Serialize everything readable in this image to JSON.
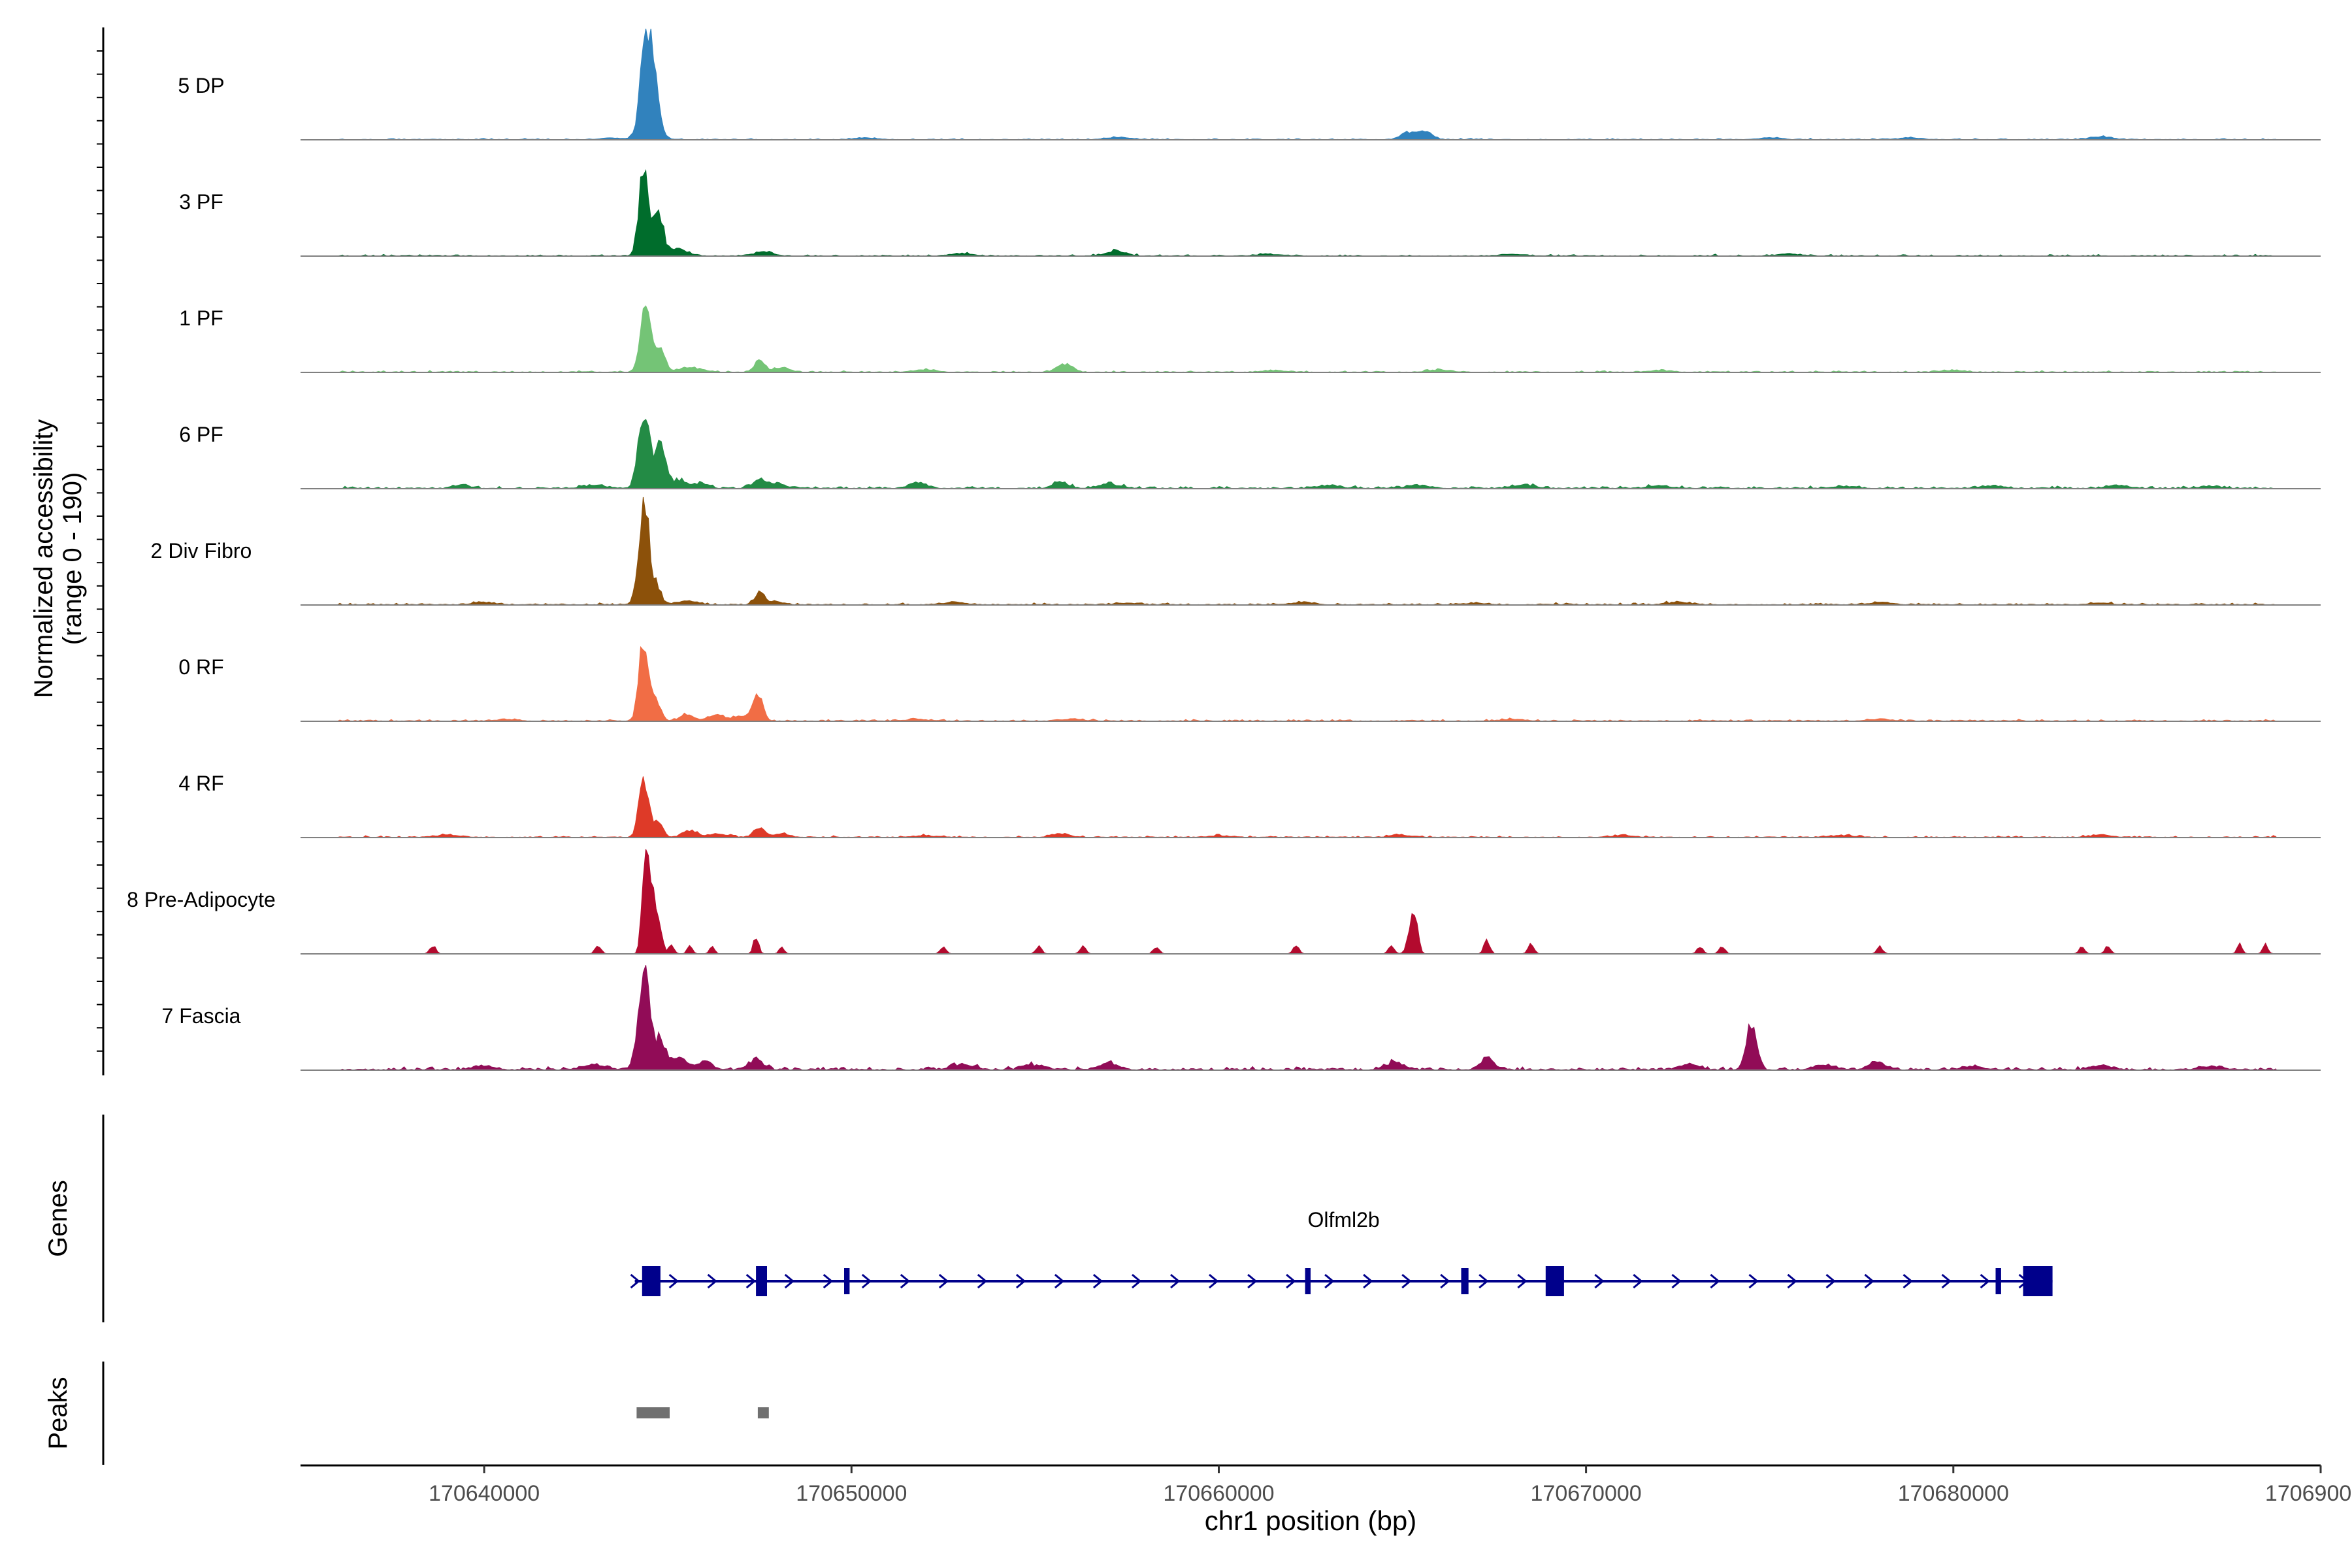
{
  "chart_data": {
    "type": "area",
    "title": "",
    "ylabel_line1": "Normalized accessibility",
    "ylabel_line2": "(range 0 - 190)",
    "xlabel": "chr1 position (bp)",
    "xlim": [
      170635000,
      170690000
    ],
    "ylim": [
      0,
      190
    ],
    "x_ticks": [
      170640000,
      170650000,
      170660000,
      170670000,
      170680000,
      170690000
    ],
    "x_tick_labels": [
      "170640000",
      "170650000",
      "170660000",
      "170670000",
      "170680000",
      "170690000"
    ],
    "signal_range": [
      170636000,
      170688800
    ],
    "series": [
      {
        "name": "5 DP",
        "color": "#3182bd",
        "baseline": 1.2,
        "peaks": [
          [
            170644450,
            190,
            170
          ],
          [
            170644700,
            35,
            140
          ],
          [
            170665150,
            12,
            200
          ],
          [
            170665600,
            14,
            200
          ],
          [
            170643500,
            3,
            300
          ],
          [
            170650400,
            3,
            300
          ],
          [
            170657300,
            4,
            300
          ],
          [
            170675000,
            3,
            300
          ],
          [
            170678800,
            3,
            300
          ],
          [
            170684000,
            5,
            300
          ]
        ]
      },
      {
        "name": "3 PF",
        "color": "#006d2c",
        "baseline": 1.4,
        "peaks": [
          [
            170644350,
            155,
            130
          ],
          [
            170644750,
            72,
            120
          ],
          [
            170645200,
            12,
            300
          ],
          [
            170647600,
            7,
            250
          ],
          [
            170657200,
            9,
            250
          ],
          [
            170653000,
            4,
            300
          ],
          [
            170661300,
            3,
            300
          ],
          [
            170668000,
            3,
            300
          ],
          [
            170675500,
            3,
            300
          ]
        ]
      },
      {
        "name": "1 PF",
        "color": "#74c476",
        "baseline": 1.6,
        "peaks": [
          [
            170644400,
            115,
            140
          ],
          [
            170644800,
            35,
            130
          ],
          [
            170645600,
            8,
            300
          ],
          [
            170647500,
            20,
            140
          ],
          [
            170648100,
            8,
            200
          ],
          [
            170655800,
            14,
            200
          ],
          [
            170652000,
            4,
            300
          ],
          [
            170661500,
            3,
            300
          ],
          [
            170666000,
            4,
            300
          ],
          [
            170672000,
            3,
            300
          ],
          [
            170680000,
            3,
            300
          ]
        ]
      },
      {
        "name": "6 PF",
        "color": "#238b45",
        "baseline": 2.2,
        "peaks": [
          [
            170644350,
            130,
            150
          ],
          [
            170644800,
            70,
            140
          ],
          [
            170645300,
            14,
            200
          ],
          [
            170645900,
            9,
            200
          ],
          [
            170647500,
            14,
            200
          ],
          [
            170648000,
            8,
            200
          ],
          [
            170643000,
            6,
            300
          ],
          [
            170639400,
            6,
            200
          ],
          [
            170651800,
            9,
            250
          ],
          [
            170655700,
            12,
            200
          ],
          [
            170657000,
            7,
            300
          ],
          [
            170663000,
            5,
            300
          ],
          [
            170665400,
            5,
            300
          ],
          [
            170668300,
            6,
            300
          ],
          [
            170672000,
            5,
            300
          ],
          [
            170677000,
            4,
            300
          ],
          [
            170681000,
            4,
            300
          ],
          [
            170684500,
            5,
            300
          ],
          [
            170687000,
            4,
            300
          ]
        ]
      },
      {
        "name": "2 Div Fibro",
        "color": "#8c510a",
        "baseline": 1.8,
        "peaks": [
          [
            170644350,
            175,
            140
          ],
          [
            170644700,
            30,
            120
          ],
          [
            170645500,
            6,
            300
          ],
          [
            170647500,
            20,
            130
          ],
          [
            170647900,
            6,
            200
          ],
          [
            170640000,
            4,
            300
          ],
          [
            170652800,
            4,
            300
          ],
          [
            170657500,
            3,
            300
          ],
          [
            170662300,
            4,
            300
          ],
          [
            170667000,
            3,
            300
          ],
          [
            170672500,
            4,
            300
          ],
          [
            170678000,
            4,
            300
          ],
          [
            170684000,
            3,
            300
          ]
        ]
      },
      {
        "name": "0 RF",
        "color": "#f16d45",
        "baseline": 1.6,
        "peaks": [
          [
            170644350,
            140,
            130
          ],
          [
            170644700,
            30,
            120
          ],
          [
            170645500,
            12,
            180
          ],
          [
            170646300,
            10,
            250
          ],
          [
            170647450,
            48,
            130
          ],
          [
            170647000,
            8,
            200
          ],
          [
            170640600,
            3,
            300
          ],
          [
            170651800,
            3,
            300
          ],
          [
            170656000,
            3,
            300
          ],
          [
            170668000,
            3,
            300
          ],
          [
            170678000,
            3,
            300
          ]
        ]
      },
      {
        "name": "4 RF",
        "color": "#de3a28",
        "baseline": 1.6,
        "peaks": [
          [
            170644350,
            100,
            130
          ],
          [
            170644750,
            25,
            120
          ],
          [
            170645600,
            12,
            200
          ],
          [
            170646400,
            6,
            250
          ],
          [
            170647500,
            16,
            160
          ],
          [
            170648100,
            6,
            200
          ],
          [
            170639000,
            4,
            300
          ],
          [
            170652000,
            3,
            300
          ],
          [
            170655700,
            6,
            250
          ],
          [
            170660000,
            3,
            300
          ],
          [
            170665000,
            4,
            300
          ],
          [
            170671000,
            3,
            300
          ],
          [
            170677000,
            3,
            300
          ],
          [
            170684000,
            4,
            300
          ]
        ]
      },
      {
        "name": "8 Pre-Adipocyte",
        "color": "#b30a2e",
        "baseline": 0,
        "peaks": [
          [
            170644400,
            190,
            90
          ],
          [
            170644600,
            120,
            80
          ],
          [
            170644800,
            45,
            70
          ],
          [
            170638600,
            14,
            80
          ],
          [
            170643100,
            14,
            80
          ],
          [
            170645100,
            16,
            70
          ],
          [
            170645600,
            14,
            70
          ],
          [
            170646200,
            12,
            70
          ],
          [
            170647400,
            30,
            70
          ],
          [
            170648100,
            12,
            70
          ],
          [
            170652500,
            12,
            80
          ],
          [
            170655100,
            12,
            80
          ],
          [
            170656300,
            12,
            80
          ],
          [
            170658300,
            12,
            80
          ],
          [
            170662100,
            14,
            80
          ],
          [
            170664700,
            14,
            80
          ],
          [
            170665200,
            32,
            90
          ],
          [
            170665350,
            65,
            80
          ],
          [
            170667300,
            22,
            80
          ],
          [
            170668500,
            18,
            80
          ],
          [
            170673100,
            12,
            80
          ],
          [
            170673700,
            12,
            80
          ],
          [
            170678000,
            12,
            80
          ],
          [
            170683500,
            12,
            80
          ],
          [
            170684200,
            12,
            80
          ],
          [
            170687800,
            16,
            70
          ],
          [
            170688500,
            16,
            70
          ]
        ]
      },
      {
        "name": "7 Fascia",
        "color": "#910c57",
        "baseline": 3,
        "peaks": [
          [
            170644350,
            160,
            160
          ],
          [
            170644800,
            50,
            140
          ],
          [
            170645300,
            20,
            200
          ],
          [
            170646000,
            15,
            200
          ],
          [
            170647400,
            18,
            200
          ],
          [
            170643000,
            9,
            300
          ],
          [
            170640000,
            6,
            300
          ],
          [
            170653000,
            9,
            300
          ],
          [
            170655000,
            8,
            300
          ],
          [
            170657000,
            12,
            250
          ],
          [
            170664800,
            12,
            250
          ],
          [
            170667300,
            18,
            200
          ],
          [
            170672800,
            10,
            250
          ],
          [
            170674500,
            78,
            140
          ],
          [
            170676500,
            8,
            300
          ],
          [
            170677900,
            15,
            200
          ],
          [
            170680500,
            6,
            300
          ],
          [
            170684000,
            7,
            300
          ],
          [
            170687000,
            6,
            300
          ]
        ]
      }
    ],
    "gene": {
      "track_label": "Genes",
      "name": "Olfml2b",
      "color": "#00008b",
      "start": 170644100,
      "end": 170682700,
      "strand": "+",
      "exons": [
        [
          170644300,
          170644800,
          "wide"
        ],
        [
          170647400,
          170647700,
          "wide"
        ],
        [
          170649800,
          170649950,
          "thin"
        ],
        [
          170662350,
          170662500,
          "thin"
        ],
        [
          170666600,
          170666800,
          "mid"
        ],
        [
          170668900,
          170669400,
          "wide"
        ],
        [
          170681150,
          170681300,
          "thin"
        ],
        [
          170681900,
          170682700,
          "wide"
        ]
      ]
    },
    "peaks_track": {
      "track_label": "Peaks",
      "color": "#707070",
      "regions": [
        [
          170644150,
          170645050
        ],
        [
          170647450,
          170647750
        ]
      ]
    }
  }
}
